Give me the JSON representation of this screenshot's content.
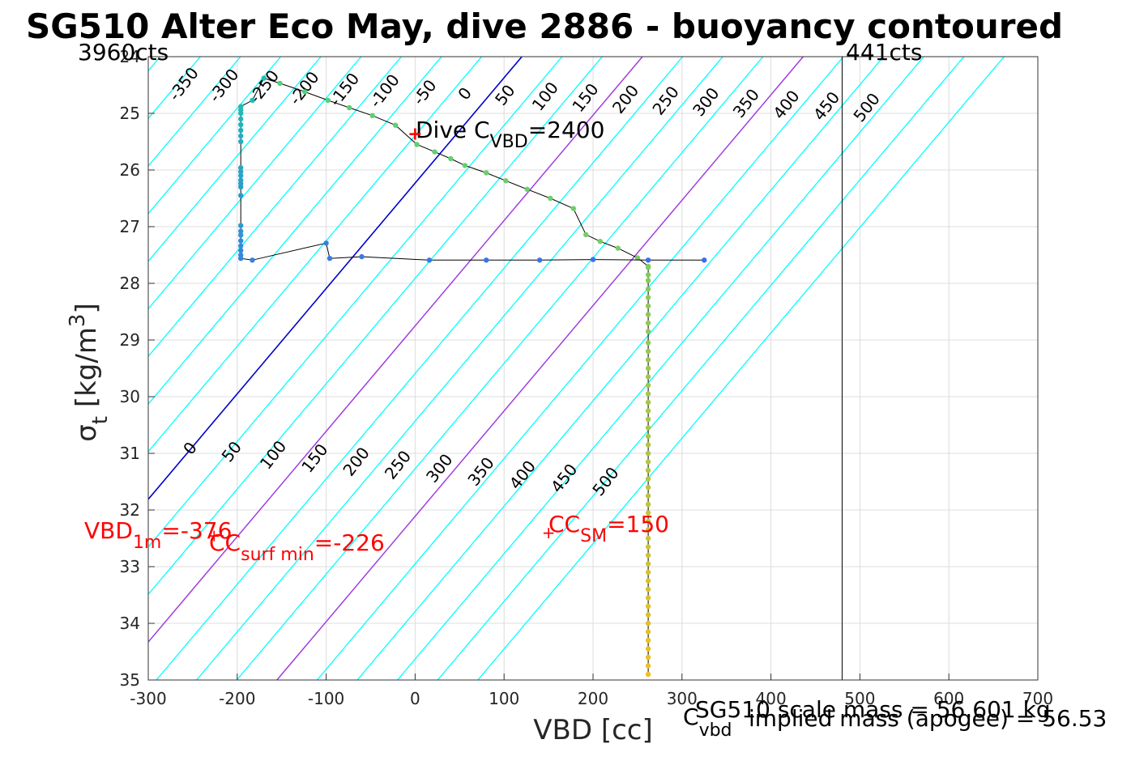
{
  "chart_data": {
    "type": "scatter",
    "title": "SG510 Alter Eco May, dive 2886 - buoyancy contoured",
    "xlabel": "VBD [cc]",
    "ylabel_main": "σ",
    "ylabel_sub": "t",
    "ylabel_unit": "[kg/m",
    "ylabel_sup": "3",
    "ylabel_close": "]",
    "xlim": [
      -300,
      700
    ],
    "ylim": [
      24,
      35
    ],
    "y_reversed": true,
    "grid": true,
    "xticks": [
      -300,
      -200,
      -100,
      0,
      100,
      200,
      300,
      400,
      500,
      600,
      700
    ],
    "yticks": [
      24,
      25,
      26,
      27,
      28,
      29,
      30,
      31,
      32,
      33,
      34,
      35
    ],
    "top_left_label": "3960cts",
    "top_right_label": "441cts",
    "vertical_line_x": 480,
    "contour_color": "#00ffff",
    "vbd_zero_line_color": "#0000cc",
    "cc_line_color": "#b030e0",
    "upper_contour_labels": [
      "-350",
      "-300",
      "-250",
      "-200",
      "-150",
      "-100",
      "-50",
      "0",
      "50",
      "100",
      "150",
      "200",
      "250",
      "300",
      "350",
      "400",
      "450",
      "500"
    ],
    "lower_contour_labels": [
      "0",
      "50",
      "100",
      "150",
      "200",
      "250",
      "300",
      "350",
      "400",
      "450",
      "500"
    ],
    "annotations": {
      "dive_c_main": "Dive C",
      "dive_c_sub": "VBD",
      "dive_c_value": "=2400",
      "vbd1m_main": "VBD",
      "vbd1m_sub": "1m",
      "vbd1m_value": "=-376",
      "ccsurf_main": "CC",
      "ccsurf_sub": "surf min",
      "ccsurf_value": "=-226",
      "ccsm_main": "CC",
      "ccsm_sub": "SM",
      "ccsm_value": "=150",
      "plus_marker": "+",
      "cvbd_main": "C",
      "cvbd_sub": "vbd",
      "scale_mass": "SG510 scale mass = 56.601 kg",
      "implied_mass": "implied mass (apogee) = 56.53"
    },
    "dive_c_marker": {
      "x": 0,
      "y": 25.35
    },
    "cc_surf_min_marker": {
      "x": -226,
      "y": 32.45
    },
    "cc_sm_marker": {
      "x": 150,
      "y": 32.4
    },
    "descent": {
      "color_start": "#4fd17a",
      "color_end": "#f0c020",
      "points": [
        [
          -170,
          24.38
        ],
        [
          -152,
          24.47
        ],
        [
          -124,
          24.62
        ],
        [
          -98,
          24.77
        ],
        [
          -74,
          24.9
        ],
        [
          -48,
          25.04
        ],
        [
          -22,
          25.21
        ],
        [
          2,
          25.55
        ],
        [
          22,
          25.68
        ],
        [
          40,
          25.8
        ],
        [
          56,
          25.92
        ],
        [
          80,
          26.05
        ],
        [
          102,
          26.19
        ],
        [
          126,
          26.34
        ],
        [
          152,
          26.5
        ],
        [
          178,
          26.68
        ],
        [
          192,
          27.14
        ],
        [
          208,
          27.26
        ],
        [
          228,
          27.38
        ],
        [
          250,
          27.55
        ],
        [
          262,
          27.7
        ],
        [
          262,
          27.72
        ],
        [
          262,
          27.85
        ],
        [
          262,
          27.95
        ],
        [
          262,
          28.1
        ],
        [
          262,
          28.25
        ],
        [
          262,
          28.4
        ],
        [
          262,
          28.55
        ],
        [
          262,
          28.7
        ],
        [
          262,
          28.85
        ],
        [
          262,
          29.05
        ],
        [
          262,
          29.2
        ],
        [
          262,
          29.35
        ],
        [
          262,
          29.5
        ],
        [
          262,
          29.65
        ],
        [
          262,
          29.8
        ],
        [
          262,
          29.95
        ],
        [
          262,
          30.1
        ],
        [
          262,
          30.25
        ],
        [
          262,
          30.4
        ],
        [
          262,
          30.55
        ],
        [
          262,
          30.7
        ],
        [
          262,
          30.85
        ],
        [
          262,
          31.0
        ],
        [
          262,
          31.15
        ],
        [
          262,
          31.3
        ],
        [
          262,
          31.45
        ],
        [
          262,
          31.6
        ],
        [
          262,
          31.75
        ],
        [
          262,
          31.9
        ],
        [
          262,
          32.05
        ],
        [
          262,
          32.2
        ],
        [
          262,
          32.35
        ],
        [
          262,
          32.5
        ],
        [
          262,
          32.65
        ],
        [
          262,
          32.8
        ],
        [
          262,
          32.95
        ],
        [
          262,
          33.1
        ],
        [
          262,
          33.25
        ],
        [
          262,
          33.4
        ],
        [
          262,
          33.55
        ],
        [
          262,
          33.7
        ],
        [
          262,
          33.85
        ],
        [
          262,
          34.0
        ],
        [
          262,
          34.15
        ],
        [
          262,
          34.3
        ],
        [
          262,
          34.45
        ],
        [
          262,
          34.6
        ],
        [
          262,
          34.75
        ],
        [
          262,
          34.9
        ]
      ]
    },
    "climb": {
      "color_start": "#3e6bf0",
      "color_end": "#20c0b0",
      "points": [
        [
          325,
          27.59
        ],
        [
          262,
          27.59
        ],
        [
          200,
          27.58
        ],
        [
          140,
          27.59
        ],
        [
          80,
          27.59
        ],
        [
          16,
          27.59
        ],
        [
          -60,
          27.53
        ],
        [
          -96,
          27.56
        ],
        [
          -100,
          27.29
        ],
        [
          -183,
          27.59
        ],
        [
          -196,
          27.56
        ],
        [
          -196,
          27.5
        ],
        [
          -196,
          27.42
        ],
        [
          -196,
          27.34
        ],
        [
          -196,
          27.25
        ],
        [
          -196,
          27.15
        ],
        [
          -196,
          27.08
        ],
        [
          -196,
          26.98
        ],
        [
          -196,
          26.45
        ],
        [
          -196,
          26.3
        ],
        [
          -196,
          26.24
        ],
        [
          -196,
          26.18
        ],
        [
          -196,
          26.1
        ],
        [
          -196,
          26.03
        ],
        [
          -196,
          25.96
        ],
        [
          -196,
          25.5
        ],
        [
          -196,
          25.4
        ],
        [
          -196,
          25.3
        ],
        [
          -196,
          25.2
        ],
        [
          -196,
          25.1
        ],
        [
          -196,
          25.0
        ],
        [
          -196,
          24.94
        ],
        [
          -196,
          24.88
        ],
        [
          -183,
          24.77
        ],
        [
          -170,
          24.38
        ]
      ]
    }
  }
}
